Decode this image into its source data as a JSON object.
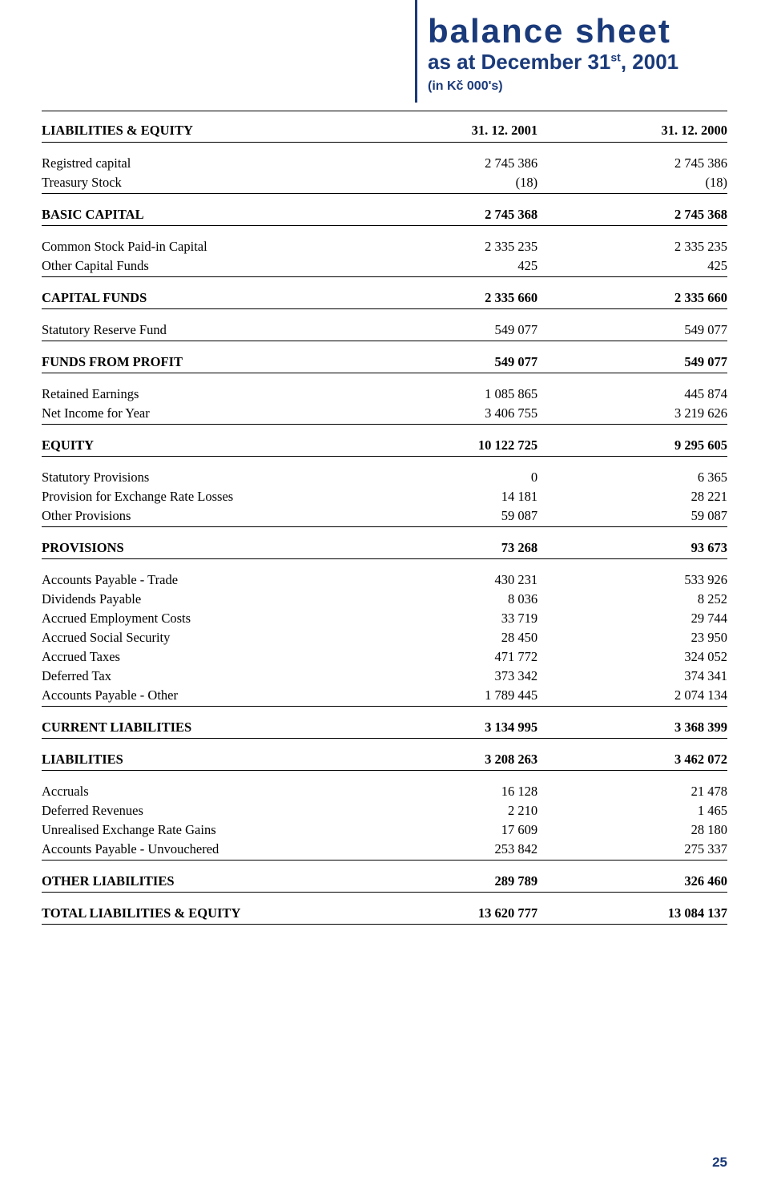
{
  "header": {
    "title": "balance sheet",
    "subtitle_pre": "as at December 31",
    "subtitle_sup": "st",
    "subtitle_post": ", 2001",
    "note": "(in Kč 000's)"
  },
  "columns": {
    "label": "LIABILITIES & EQUITY",
    "col1": "31. 12. 2001",
    "col2": "31. 12. 2000"
  },
  "rows": [
    {
      "label": "Registred capital",
      "v1": "2 745 386",
      "v2": "2 745 386",
      "bold": false,
      "rule": false,
      "section_start": true
    },
    {
      "label": "Treasury Stock",
      "v1": "(18)",
      "v2": "(18)",
      "bold": false,
      "rule": true
    },
    {
      "label": "BASIC CAPITAL",
      "v1": "2 745 368",
      "v2": "2 745 368",
      "bold": true,
      "rule": true,
      "section_start": true
    },
    {
      "label": "Common Stock Paid-in Capital",
      "v1": "2 335 235",
      "v2": "2 335 235",
      "bold": false,
      "section_start": true
    },
    {
      "label": "Other Capital Funds",
      "v1": "425",
      "v2": "425",
      "bold": false,
      "rule": true
    },
    {
      "label": "CAPITAL FUNDS",
      "v1": "2 335 660",
      "v2": "2 335 660",
      "bold": true,
      "rule": true,
      "section_start": true
    },
    {
      "label": "Statutory Reserve Fund",
      "v1": "549 077",
      "v2": "549 077",
      "bold": false,
      "rule": true,
      "section_start": true
    },
    {
      "label": "FUNDS FROM PROFIT",
      "v1": "549 077",
      "v2": "549 077",
      "bold": true,
      "rule": true,
      "section_start": true
    },
    {
      "label": "Retained Earnings",
      "v1": "1 085 865",
      "v2": "445 874",
      "bold": false,
      "section_start": true
    },
    {
      "label": "Net Income for Year",
      "v1": "3 406 755",
      "v2": "3 219 626",
      "bold": false,
      "rule": true
    },
    {
      "label": "EQUITY",
      "v1": "10 122 725",
      "v2": "9 295 605",
      "bold": true,
      "rule": true,
      "section_start": true
    },
    {
      "label": "Statutory Provisions",
      "v1": "0",
      "v2": "6 365",
      "bold": false,
      "section_start": true
    },
    {
      "label": "Provision for Exchange Rate Losses",
      "v1": "14 181",
      "v2": "28 221",
      "bold": false
    },
    {
      "label": "Other Provisions",
      "v1": "59 087",
      "v2": "59 087",
      "bold": false,
      "rule": true
    },
    {
      "label": "PROVISIONS",
      "v1": "73 268",
      "v2": "93 673",
      "bold": true,
      "rule": true,
      "section_start": true
    },
    {
      "label": "Accounts Payable - Trade",
      "v1": "430 231",
      "v2": "533 926",
      "bold": false,
      "section_start": true
    },
    {
      "label": "Dividends Payable",
      "v1": "8 036",
      "v2": "8 252",
      "bold": false
    },
    {
      "label": "Accrued Employment Costs",
      "v1": "33 719",
      "v2": "29 744",
      "bold": false
    },
    {
      "label": "Accrued Social Security",
      "v1": "28 450",
      "v2": "23 950",
      "bold": false
    },
    {
      "label": "Accrued Taxes",
      "v1": "471 772",
      "v2": "324 052",
      "bold": false
    },
    {
      "label": "Deferred Tax",
      "v1": "373 342",
      "v2": "374 341",
      "bold": false
    },
    {
      "label": "Accounts Payable - Other",
      "v1": "1 789 445",
      "v2": "2 074 134",
      "bold": false,
      "rule": true
    },
    {
      "label": "CURRENT LIABILITIES",
      "v1": "3 134 995",
      "v2": "3 368 399",
      "bold": true,
      "rule": true,
      "section_start": true
    },
    {
      "label": "LIABILITIES",
      "v1": "3 208 263",
      "v2": "3 462 072",
      "bold": true,
      "rule": true,
      "section_start": true
    },
    {
      "label": "Accruals",
      "v1": "16 128",
      "v2": "21 478",
      "bold": false,
      "section_start": true
    },
    {
      "label": "Deferred Revenues",
      "v1": "2 210",
      "v2": "1 465",
      "bold": false
    },
    {
      "label": "Unrealised Exchange Rate Gains",
      "v1": "17 609",
      "v2": "28 180",
      "bold": false
    },
    {
      "label": "Accounts Payable - Unvouchered",
      "v1": "253 842",
      "v2": "275 337",
      "bold": false,
      "rule": true
    },
    {
      "label": "OTHER LIABILITIES",
      "v1": "289 789",
      "v2": "326 460",
      "bold": true,
      "rule": true,
      "section_start": true
    },
    {
      "label": "TOTAL LIABILITIES & EQUITY",
      "v1": "13 620 777",
      "v2": "13 084 137",
      "bold": true,
      "rule": true,
      "section_start": true
    }
  ],
  "page_number": "25"
}
